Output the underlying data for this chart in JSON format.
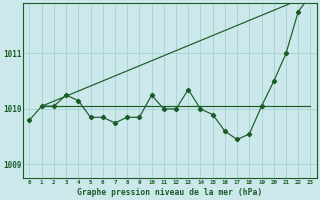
{
  "background_color": "#cce8ea",
  "grid_color": "#9ecfcf",
  "line_color": "#1a5c28",
  "title": "Graphe pression niveau de la mer (hPa)",
  "xlabel_hours": [
    0,
    1,
    2,
    3,
    4,
    5,
    6,
    7,
    8,
    9,
    10,
    11,
    12,
    13,
    14,
    15,
    16,
    17,
    18,
    19,
    20,
    21,
    22,
    23
  ],
  "yticks": [
    1009,
    1010,
    1011
  ],
  "ylim": [
    1008.75,
    1011.9
  ],
  "xlim": [
    -0.5,
    23.5
  ],
  "series": {
    "main_line": [
      1009.8,
      1010.05,
      1010.05,
      1010.25,
      1010.15,
      1009.85,
      1009.85,
      1009.75,
      1009.85,
      1009.85,
      1010.25,
      1010.0,
      1010.0,
      1010.35,
      1010.0,
      1009.9,
      1009.6,
      1009.45,
      1009.55,
      1010.05,
      1010.5,
      1011.0,
      1011.75,
      1012.05
    ],
    "flat_line_y": 1010.05,
    "flat_line_x_start": 1,
    "flat_line_x_end": 23,
    "rising_line": [
      [
        1,
        1010.05
      ],
      [
        23,
        1012.05
      ]
    ]
  }
}
